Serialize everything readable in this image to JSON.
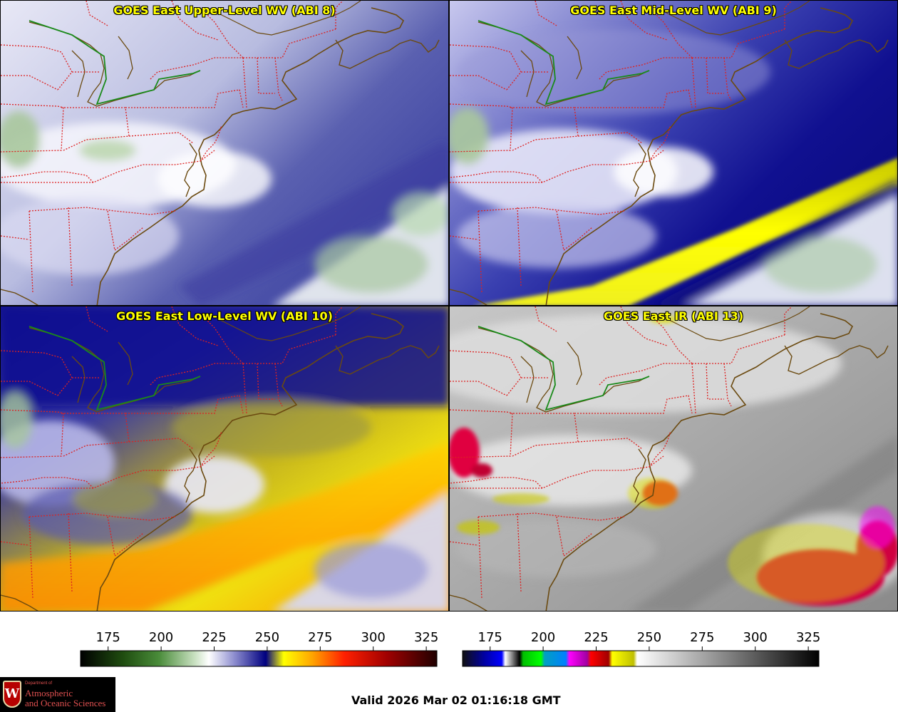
{
  "panels": [
    {
      "id": "upper",
      "title": "GOES East Upper-Level WV (ABI 8)"
    },
    {
      "id": "mid",
      "title": "GOES East Mid-Level WV (ABI 9)"
    },
    {
      "id": "low",
      "title": "GOES East Low-Level WV (ABI 10)"
    },
    {
      "id": "ir",
      "title": "GOES East IR (ABI 13)"
    }
  ],
  "colorbars": {
    "wv": {
      "ticks": [
        "175",
        "200",
        "225",
        "250",
        "275",
        "300",
        "325"
      ],
      "min": 162,
      "max": 330,
      "stops": [
        [
          "#000000",
          0
        ],
        [
          "#1f4d10",
          0.12
        ],
        [
          "#4a8c3a",
          0.22
        ],
        [
          "#c8e0c0",
          0.32
        ],
        [
          "#ffffff",
          0.36
        ],
        [
          "#9090d0",
          0.43
        ],
        [
          "#000080",
          0.52
        ],
        [
          "#ffff00",
          0.57
        ],
        [
          "#ffa500",
          0.65
        ],
        [
          "#ff2000",
          0.74
        ],
        [
          "#a00000",
          0.86
        ],
        [
          "#200000",
          1.0
        ]
      ]
    },
    "ir": {
      "ticks": [
        "175",
        "200",
        "225",
        "250",
        "275",
        "300",
        "325"
      ],
      "min": 162,
      "max": 330,
      "stops": [
        [
          "#101010",
          0
        ],
        [
          "#0000a0",
          0.06
        ],
        [
          "#0000ff",
          0.11
        ],
        [
          "#ffffff",
          0.12
        ],
        [
          "#000000",
          0.16
        ],
        [
          "#00c000",
          0.17
        ],
        [
          "#00ff00",
          0.22
        ],
        [
          "#00a0c0",
          0.23
        ],
        [
          "#0080ff",
          0.29
        ],
        [
          "#ff00ff",
          0.3
        ],
        [
          "#a000a0",
          0.35
        ],
        [
          "#ff0000",
          0.36
        ],
        [
          "#a00000",
          0.41
        ],
        [
          "#ffff00",
          0.42
        ],
        [
          "#c0c000",
          0.48
        ],
        [
          "#ffffff",
          0.49
        ],
        [
          "#808080",
          0.75
        ],
        [
          "#000000",
          1.0
        ]
      ]
    }
  },
  "logo": {
    "dept": "Department of",
    "line1": "Atmospheric",
    "line2": "and Oceanic Sciences",
    "letter": "W"
  },
  "valid_text": "Valid 2026 Mar 02 01:16:18 GMT",
  "colors": {
    "border": "#cc2222",
    "coast": "#6b4a10",
    "canada_border": "#1a8a1a"
  }
}
